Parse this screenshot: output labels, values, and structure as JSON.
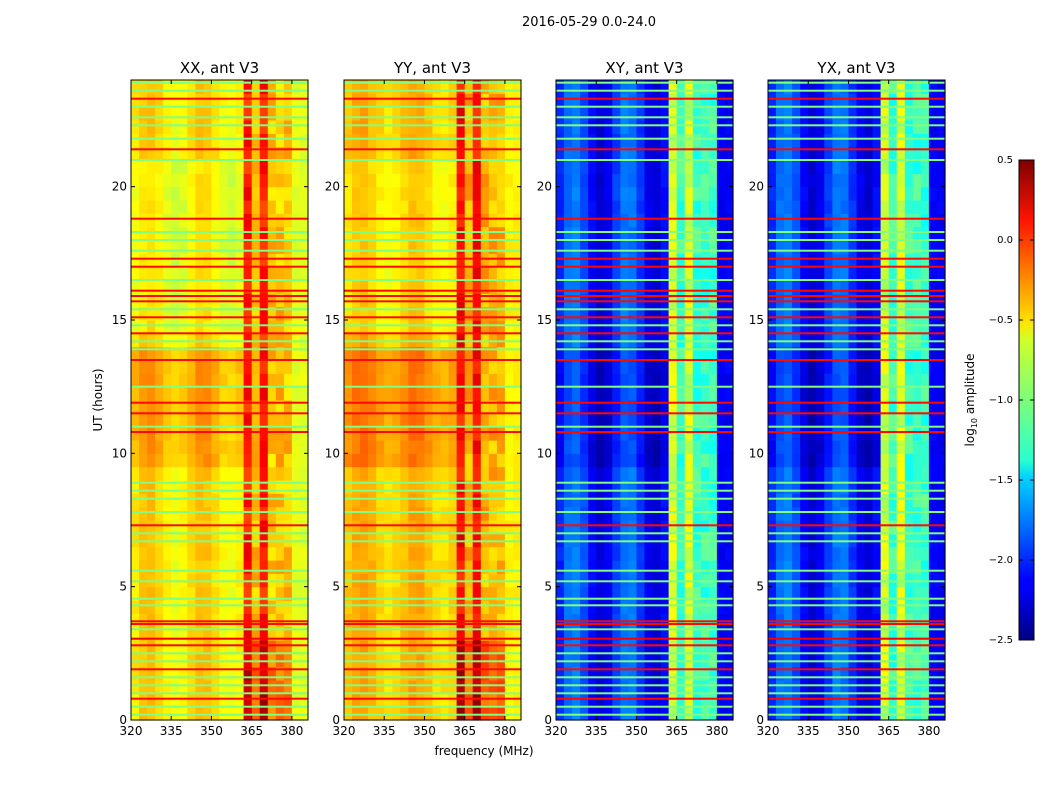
{
  "figure": {
    "suptitle": "2016-05-29 0.0-24.0",
    "xlabel": "frequency (MHz)",
    "ylabel": "UT (hours)"
  },
  "chart_data": {
    "type": "heatmap",
    "colormap": "jet",
    "xlim": [
      320,
      386
    ],
    "ylim": [
      0,
      24
    ],
    "x_ticks": [
      320,
      335,
      350,
      365,
      380
    ],
    "y_ticks": [
      0,
      5,
      10,
      15,
      20
    ],
    "colorbar": {
      "label_prefix": "log",
      "label_sub": "10",
      "label_suffix": " amplitude",
      "range": [
        -2.5,
        0.5
      ],
      "ticks": [
        "0.5",
        "0.0",
        "−0.5",
        "−1.0",
        "−1.5",
        "−2.0",
        "−2.5"
      ],
      "tick_values": [
        0.5,
        0.0,
        -0.5,
        -1.0,
        -1.5,
        -2.0,
        -2.5
      ]
    },
    "rfi_band_mhz": [
      363,
      381
    ],
    "rfi_gaps_mhz": [
      367.5,
      372.5,
      377
    ],
    "flag_lines": [
      {
        "hour": 0.2,
        "level": -1.0
      },
      {
        "hour": 0.5,
        "level": -1.0
      },
      {
        "hour": 0.8,
        "level": 0.1
      },
      {
        "hour": 1.0,
        "level": -1.0
      },
      {
        "hour": 1.3,
        "level": -1.0
      },
      {
        "hour": 1.6,
        "level": -1.0
      },
      {
        "hour": 1.9,
        "level": 0.1
      },
      {
        "hour": 2.2,
        "level": -1.0
      },
      {
        "hour": 2.5,
        "level": -1.0
      },
      {
        "hour": 2.8,
        "level": 0.1
      },
      {
        "hour": 3.05,
        "level": 0.15
      },
      {
        "hour": 3.4,
        "level": -1.0
      },
      {
        "hour": 3.6,
        "level": 0.1
      },
      {
        "hour": 3.7,
        "level": 0.1
      },
      {
        "hour": 4.3,
        "level": -1.0
      },
      {
        "hour": 4.55,
        "level": -1.0
      },
      {
        "hour": 5.2,
        "level": -1.0
      },
      {
        "hour": 5.6,
        "level": -1.0
      },
      {
        "hour": 6.7,
        "level": -1.0
      },
      {
        "hour": 7.0,
        "level": -1.0
      },
      {
        "hour": 7.3,
        "level": 0.1
      },
      {
        "hour": 7.8,
        "level": -1.0
      },
      {
        "hour": 8.3,
        "level": -1.0
      },
      {
        "hour": 8.6,
        "level": -1.0
      },
      {
        "hour": 8.9,
        "level": -1.0
      },
      {
        "hour": 10.8,
        "level": 0.1
      },
      {
        "hour": 11.0,
        "level": -1.0
      },
      {
        "hour": 11.5,
        "level": 0.1
      },
      {
        "hour": 11.9,
        "level": 0.1
      },
      {
        "hour": 12.5,
        "level": -1.0
      },
      {
        "hour": 13.5,
        "level": 0.1
      },
      {
        "hour": 13.9,
        "level": -1.0
      },
      {
        "hour": 14.2,
        "level": -1.0
      },
      {
        "hour": 14.5,
        "level": 0.1
      },
      {
        "hour": 14.8,
        "level": -1.0
      },
      {
        "hour": 15.1,
        "level": 0.1
      },
      {
        "hour": 15.4,
        "level": -1.0
      },
      {
        "hour": 15.7,
        "level": 0.1
      },
      {
        "hour": 15.9,
        "level": 0.1
      },
      {
        "hour": 16.1,
        "level": 0.1
      },
      {
        "hour": 16.5,
        "level": -1.0
      },
      {
        "hour": 17.0,
        "level": 0.1
      },
      {
        "hour": 17.3,
        "level": 0.1
      },
      {
        "hour": 17.6,
        "level": -1.0
      },
      {
        "hour": 18.0,
        "level": -1.0
      },
      {
        "hour": 18.3,
        "level": -1.0
      },
      {
        "hour": 18.8,
        "level": 0.1
      },
      {
        "hour": 21.0,
        "level": -1.0
      },
      {
        "hour": 21.4,
        "level": 0.1
      },
      {
        "hour": 21.8,
        "level": -1.0
      },
      {
        "hour": 22.3,
        "level": -1.0
      },
      {
        "hour": 22.6,
        "level": -1.0
      },
      {
        "hour": 23.0,
        "level": -1.0
      },
      {
        "hour": 23.3,
        "level": 0.1
      },
      {
        "hour": 23.6,
        "level": -1.0
      },
      {
        "hour": 23.9,
        "level": -1.0
      }
    ],
    "panels": [
      {
        "title": "XX, ant V3",
        "base_level": -0.55,
        "rfi_level": 0.05,
        "gap_level": -0.45,
        "freq_ripple": 0.12
      },
      {
        "title": "YY, ant V3",
        "base_level": -0.45,
        "rfi_level": 0.1,
        "gap_level": -0.4,
        "freq_ripple": 0.1
      },
      {
        "title": "XY, ant V3",
        "base_level": -2.0,
        "rfi_level": -0.75,
        "gap_level": -1.2,
        "freq_ripple": 0.25
      },
      {
        "title": "YX, ant V3",
        "base_level": -2.0,
        "rfi_level": -0.75,
        "gap_level": -1.2,
        "freq_ripple": 0.25
      }
    ]
  }
}
